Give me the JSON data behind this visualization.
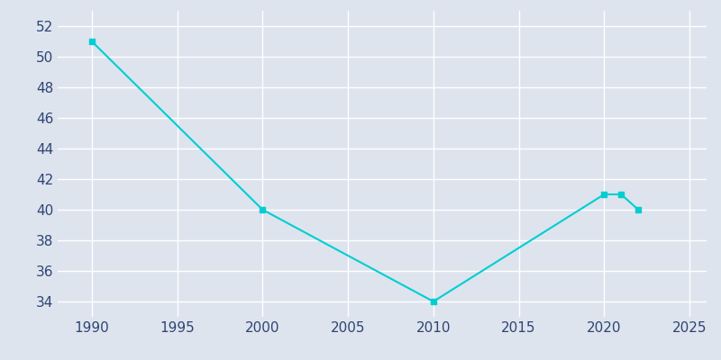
{
  "years": [
    1990,
    2000,
    2010,
    2020,
    2021,
    2022
  ],
  "population": [
    51,
    40,
    34,
    41,
    41,
    40
  ],
  "line_color": "#00CED1",
  "background_color": "#DDE4EE",
  "plot_bg_color": "#DDE4EE",
  "grid_color": "#FFFFFF",
  "text_color": "#2F4472",
  "xlim": [
    1988,
    2026
  ],
  "ylim": [
    33,
    53
  ],
  "xticks": [
    1990,
    1995,
    2000,
    2005,
    2010,
    2015,
    2020,
    2025
  ],
  "yticks": [
    34,
    36,
    38,
    40,
    42,
    44,
    46,
    48,
    50,
    52
  ],
  "line_width": 1.5,
  "marker": "s",
  "marker_size": 4
}
